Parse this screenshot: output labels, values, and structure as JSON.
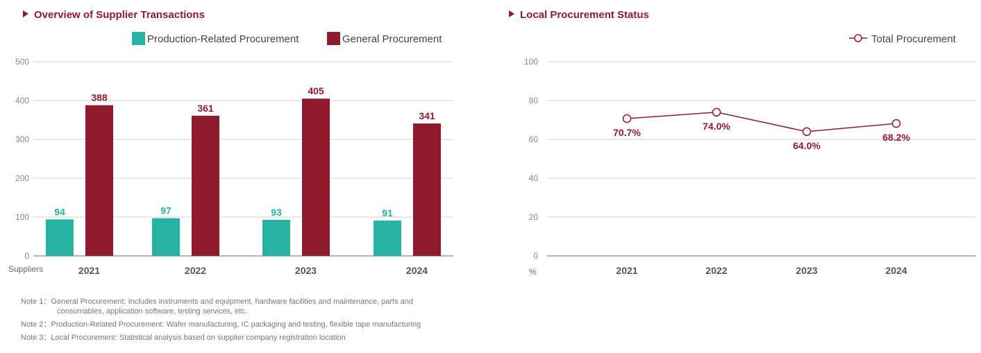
{
  "colors": {
    "accent": "#8e1a2c",
    "teal": "#26b3a3",
    "grid": "#d0d0d0",
    "axis": "#888888"
  },
  "chart_data": [
    {
      "type": "bar",
      "title": "Overview of Supplier Transactions",
      "ylabel": "Suppliers",
      "categories": [
        "2021",
        "2022",
        "2023",
        "2024"
      ],
      "ylim": [
        0,
        500
      ],
      "yticks": [
        0,
        100,
        200,
        300,
        400,
        500
      ],
      "grid": true,
      "legend": "top-right",
      "series": [
        {
          "name": "Production-Related Procurement",
          "color": "#26b3a3",
          "values": [
            94,
            97,
            93,
            91
          ]
        },
        {
          "name": "General Procurement",
          "color": "#8e1a2c",
          "values": [
            388,
            361,
            405,
            341
          ]
        }
      ]
    },
    {
      "type": "line",
      "title": "Local Procurement Status",
      "ylabel": "%",
      "categories": [
        "2021",
        "2022",
        "2023",
        "2024"
      ],
      "ylim": [
        0,
        100
      ],
      "yticks": [
        0,
        20,
        40,
        60,
        80,
        100
      ],
      "grid": true,
      "legend": "top-right",
      "series": [
        {
          "name": "Total Procurement",
          "color": "#8e1a2c",
          "values": [
            70.7,
            74.0,
            64.0,
            68.2
          ],
          "labels": [
            "70.7%",
            "74.0%",
            "64.0%",
            "68.2%"
          ]
        }
      ]
    }
  ],
  "notes": [
    "Note 1：General Procurement: Includes instruments and equipment, hardware facilities and  maintenance, parts and",
    "consumables, application software, testing services, etc.",
    "Note 2：Production-Related Procurement: Wafer manufacturing, IC packaging and testing, flexible tape manufacturing",
    "Note 3：Local Procurement: Statistical analysis based on supplier company registration location"
  ]
}
